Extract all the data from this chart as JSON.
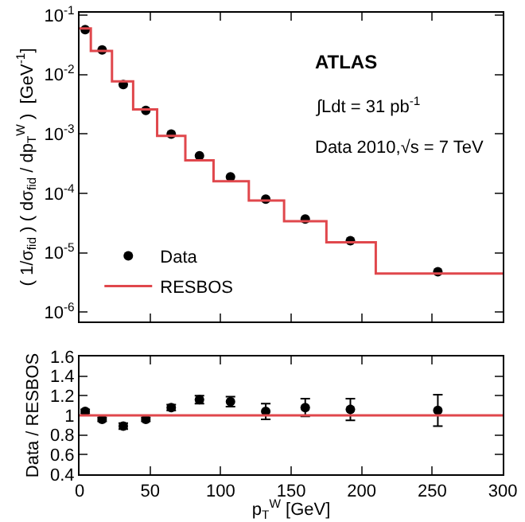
{
  "chart_data": [
    {
      "type": "scatter",
      "ylabel": "( 1/σ$_{fid}$ ) ( dσ$_{fid}$ / dp$_{T}$$^{W}$ )  [GeV$^{-1}$]",
      "log": "y",
      "xlim": [
        0,
        300
      ],
      "xticks": [
        0,
        50,
        100,
        150,
        200,
        250,
        300
      ],
      "ylim": [
        7e-07,
        0.11
      ],
      "yticks": [
        {
          "value": 1e-06,
          "label": "10$^{-6}$"
        },
        {
          "value": 1e-05,
          "label": "10$^{-5}$"
        },
        {
          "value": 0.0001,
          "label": "10$^{-4}$"
        },
        {
          "value": 0.001,
          "label": "10$^{-3}$"
        },
        {
          "value": 0.01,
          "label": "10$^{-2}$"
        },
        {
          "value": 0.1,
          "label": "10$^{-1}$"
        }
      ],
      "tick_labels": "y",
      "legend": "bottom left",
      "grid": false,
      "annotations": [
        "ATLAS",
        "∫Ldt = 31 pb$^{-1}$",
        "Data 2010,√s = 7 TeV"
      ],
      "series": [
        {
          "name": "Data",
          "marker": "circle",
          "color": "#000000",
          "x": [
            4,
            16,
            31,
            47,
            65,
            85,
            107,
            132,
            160,
            192,
            254
          ],
          "values": [
            0.057,
            0.026,
            0.0068,
            0.0025,
            0.001,
            0.00043,
            0.00019,
            8e-05,
            3.7e-05,
            1.6e-05,
            4.8e-06
          ]
        },
        {
          "name": "RESBOS",
          "type": "step",
          "color": "#e0474c",
          "x": [
            0,
            8,
            23,
            38,
            55,
            75,
            95,
            120,
            145,
            175,
            210,
            300
          ],
          "values": [
            0.06,
            0.025,
            0.0077,
            0.0026,
            0.00093,
            0.00036,
            0.00016,
            7.6e-05,
            3.4e-05,
            1.5e-05,
            4.5e-06,
            4.5e-06
          ]
        }
      ]
    },
    {
      "type": "scatter",
      "xlabel": "p$_{T}$$^{W}$ [GeV]",
      "ylabel": "Data / RESBOS",
      "xlim": [
        0,
        300
      ],
      "xticks": [
        0,
        50,
        100,
        150,
        200,
        250,
        300
      ],
      "ylim": [
        0.4,
        1.6
      ],
      "yticks": [
        0.4,
        0.6,
        0.8,
        1,
        1.2,
        1.4,
        1.6
      ],
      "grid": false,
      "ref_lines": [
        {
          "axis": "y",
          "value": 1,
          "color": "#e0474c"
        }
      ],
      "series": [
        {
          "marker": "circle",
          "color": "#000000",
          "x": [
            4,
            16,
            31,
            47,
            65,
            85,
            107,
            132,
            160,
            192,
            254
          ],
          "values": [
            1.04,
            0.96,
            0.89,
            0.96,
            1.08,
            1.16,
            1.14,
            1.04,
            1.08,
            1.06,
            1.05
          ],
          "errors": [
            0.02,
            0.02,
            0.03,
            0.02,
            0.03,
            0.04,
            0.05,
            0.08,
            0.09,
            0.11,
            0.16
          ]
        }
      ]
    }
  ]
}
